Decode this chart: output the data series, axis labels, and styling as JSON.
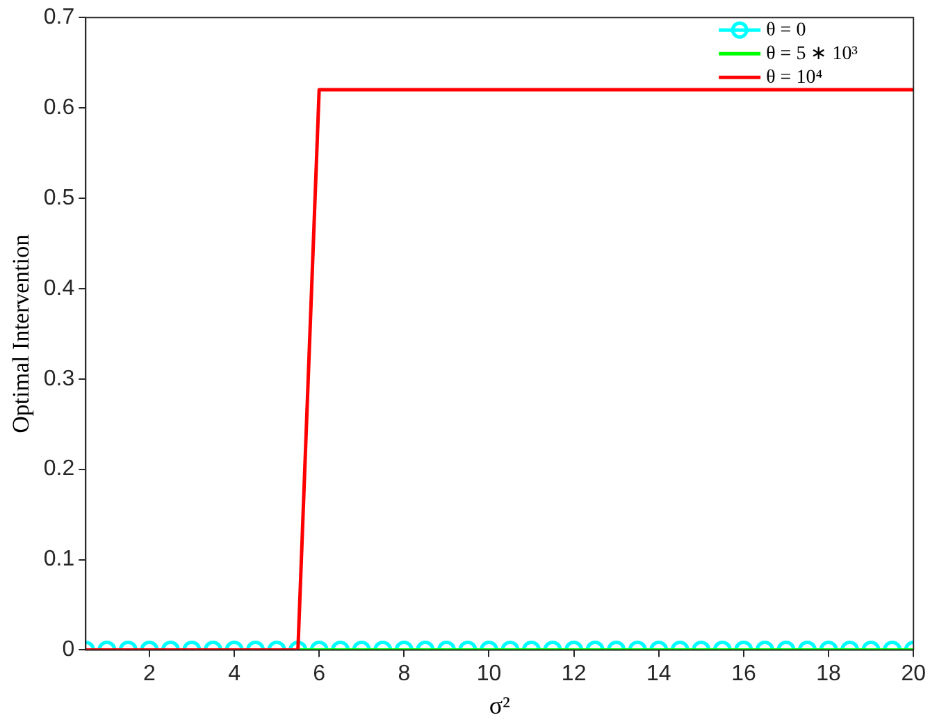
{
  "chart_data": {
    "type": "line",
    "xlabel": "σ²",
    "ylabel": "Optimal Intervention",
    "x": [
      0.5,
      1,
      1.5,
      2,
      2.5,
      3,
      3.5,
      4,
      4.5,
      5,
      5.5,
      6,
      6.5,
      7,
      7.5,
      8,
      8.5,
      9,
      9.5,
      10,
      10.5,
      11,
      11.5,
      12,
      12.5,
      13,
      13.5,
      14,
      14.5,
      15,
      15.5,
      16,
      16.5,
      17,
      17.5,
      18,
      18.5,
      19,
      19.5,
      20
    ],
    "series": [
      {
        "name": "θ = 0",
        "color": "#00ffff",
        "marker": "circle",
        "values": [
          0,
          0,
          0,
          0,
          0,
          0,
          0,
          0,
          0,
          0,
          0,
          0,
          0,
          0,
          0,
          0,
          0,
          0,
          0,
          0,
          0,
          0,
          0,
          0,
          0,
          0,
          0,
          0,
          0,
          0,
          0,
          0,
          0,
          0,
          0,
          0,
          0,
          0,
          0,
          0
        ]
      },
      {
        "name": "θ = 5 ∗ 10³",
        "color": "#00ff00",
        "marker": "none",
        "values": [
          null,
          null,
          null,
          null,
          null,
          null,
          null,
          null,
          null,
          null,
          0,
          0,
          0,
          0,
          0,
          0,
          0,
          0,
          0,
          0,
          0,
          0,
          0,
          0,
          0,
          0,
          0,
          0,
          0,
          0,
          0,
          0,
          0,
          0,
          0,
          0,
          0,
          0,
          0,
          0
        ]
      },
      {
        "name": "θ = 10⁴",
        "color": "#ff0000",
        "marker": "none",
        "values": [
          0,
          0,
          0,
          0,
          0,
          0,
          0,
          0,
          0,
          0,
          0,
          0.62,
          0.62,
          0.62,
          0.62,
          0.62,
          0.62,
          0.62,
          0.62,
          0.62,
          0.62,
          0.62,
          0.62,
          0.62,
          0.62,
          0.62,
          0.62,
          0.62,
          0.62,
          0.62,
          0.62,
          0.62,
          0.62,
          0.62,
          0.62,
          0.62,
          0.62,
          0.62,
          0.62,
          0.62
        ]
      }
    ],
    "xlim": [
      0.5,
      20
    ],
    "xticks": [
      2,
      4,
      6,
      8,
      10,
      12,
      14,
      16,
      18,
      20
    ],
    "ylim": [
      0,
      0.7
    ],
    "yticks": [
      0,
      0.1,
      0.2,
      0.3,
      0.4,
      0.5,
      0.6,
      0.7
    ],
    "grid": false,
    "legend": "top right",
    "line_style": "solid"
  }
}
